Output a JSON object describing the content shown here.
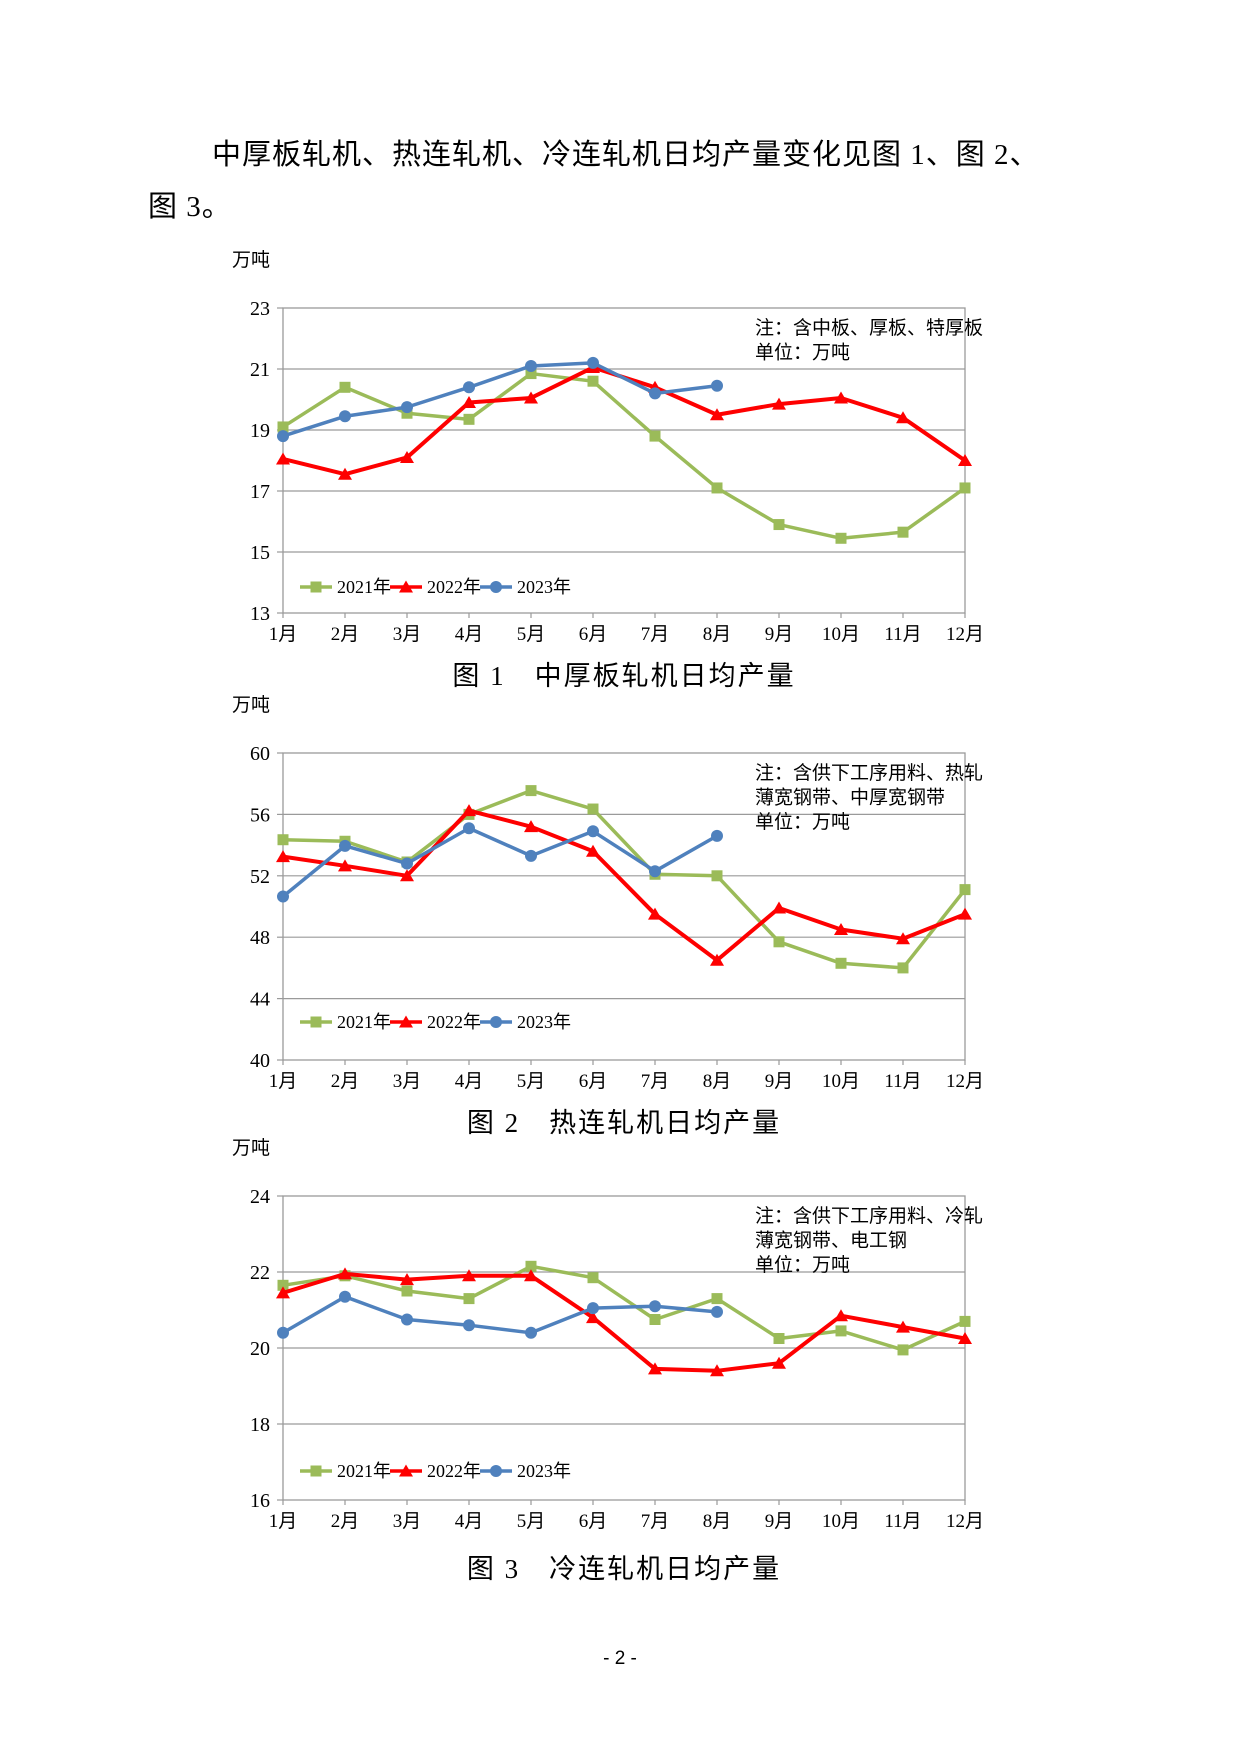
{
  "page": {
    "paragraph_line1": "中厚板轧机、热连轧机、冷连轧机日均产量变化见图 1、图 2、",
    "paragraph_line2": "图 3。",
    "page_number": "- 2 -"
  },
  "colors": {
    "series_2021": "#9BBB59",
    "series_2022": "#FE0000",
    "series_2023": "#4F81BD",
    "grid": "#9a9a9a",
    "text": "#000000"
  },
  "chart_data": [
    {
      "type": "line",
      "title": "图 1　中厚板轧机日均产量",
      "unit_label": "万吨",
      "note_lines": [
        "注：含中板、厚板、特厚板",
        "单位：万吨"
      ],
      "x_labels": [
        "1月",
        "2月",
        "3月",
        "4月",
        "5月",
        "6月",
        "7月",
        "8月",
        "9月",
        "10月",
        "11月",
        "12月"
      ],
      "ylim": [
        13,
        23
      ],
      "yticks": [
        23,
        21,
        19,
        17,
        15,
        13
      ],
      "grid": "horizontal",
      "legend_position": "inside-bottom-left",
      "series": [
        {
          "name": "2021年",
          "marker": "square",
          "color": "#9BBB59",
          "values": [
            19.1,
            20.4,
            19.55,
            19.35,
            20.85,
            20.6,
            18.8,
            17.1,
            15.9,
            15.45,
            15.65,
            17.1
          ]
        },
        {
          "name": "2022年",
          "marker": "triangle",
          "color": "#FE0000",
          "values": [
            18.05,
            17.55,
            18.1,
            19.9,
            20.05,
            21.05,
            20.4,
            19.5,
            19.85,
            20.05,
            19.4,
            18.0
          ]
        },
        {
          "name": "2023年",
          "marker": "circle",
          "color": "#4F81BD",
          "values": [
            18.8,
            19.45,
            19.75,
            20.4,
            21.1,
            21.2,
            20.2,
            20.45
          ]
        }
      ]
    },
    {
      "type": "line",
      "title": "图 2　热连轧机日均产量",
      "unit_label": "万吨",
      "note_lines": [
        "注：含供下工序用料、热轧",
        "薄宽钢带、中厚宽钢带",
        "单位：万吨"
      ],
      "x_labels": [
        "1月",
        "2月",
        "3月",
        "4月",
        "5月",
        "6月",
        "7月",
        "8月",
        "9月",
        "10月",
        "11月",
        "12月"
      ],
      "ylim": [
        40,
        60
      ],
      "yticks": [
        60,
        56,
        52,
        48,
        44,
        40
      ],
      "grid": "horizontal",
      "legend_position": "inside-bottom-left",
      "series": [
        {
          "name": "2021年",
          "marker": "square",
          "color": "#9BBB59",
          "values": [
            54.35,
            54.25,
            52.9,
            56.0,
            57.55,
            56.35,
            52.1,
            52.0,
            47.7,
            46.3,
            46.0,
            51.1
          ]
        },
        {
          "name": "2022年",
          "marker": "triangle",
          "color": "#FE0000",
          "values": [
            53.25,
            52.65,
            52.0,
            56.25,
            55.2,
            53.6,
            49.5,
            46.5,
            49.9,
            48.5,
            47.9,
            49.5
          ]
        },
        {
          "name": "2023年",
          "marker": "circle",
          "color": "#4F81BD",
          "values": [
            50.65,
            53.95,
            52.8,
            55.1,
            53.3,
            54.9,
            52.3,
            54.6
          ]
        }
      ]
    },
    {
      "type": "line",
      "title": "图 3　冷连轧机日均产量",
      "unit_label": "万吨",
      "note_lines": [
        "注：含供下工序用料、冷轧",
        "薄宽钢带、电工钢",
        "单位：万吨"
      ],
      "x_labels": [
        "1月",
        "2月",
        "3月",
        "4月",
        "5月",
        "6月",
        "7月",
        "8月",
        "9月",
        "10月",
        "11月",
        "12月"
      ],
      "ylim": [
        16,
        24
      ],
      "yticks": [
        24,
        22,
        20,
        18,
        16
      ],
      "grid": "horizontal",
      "legend_position": "inside-bottom-left",
      "series": [
        {
          "name": "2021年",
          "marker": "square",
          "color": "#9BBB59",
          "values": [
            21.65,
            21.9,
            21.5,
            21.3,
            22.15,
            21.85,
            20.75,
            21.3,
            20.25,
            20.45,
            19.95,
            20.7
          ]
        },
        {
          "name": "2022年",
          "marker": "triangle",
          "color": "#FE0000",
          "values": [
            21.45,
            21.95,
            21.8,
            21.9,
            21.9,
            20.8,
            19.45,
            19.4,
            19.6,
            20.85,
            20.55,
            20.25
          ]
        },
        {
          "name": "2023年",
          "marker": "circle",
          "color": "#4F81BD",
          "values": [
            20.4,
            21.35,
            20.75,
            20.6,
            20.4,
            21.05,
            21.1,
            20.95
          ]
        }
      ]
    }
  ]
}
